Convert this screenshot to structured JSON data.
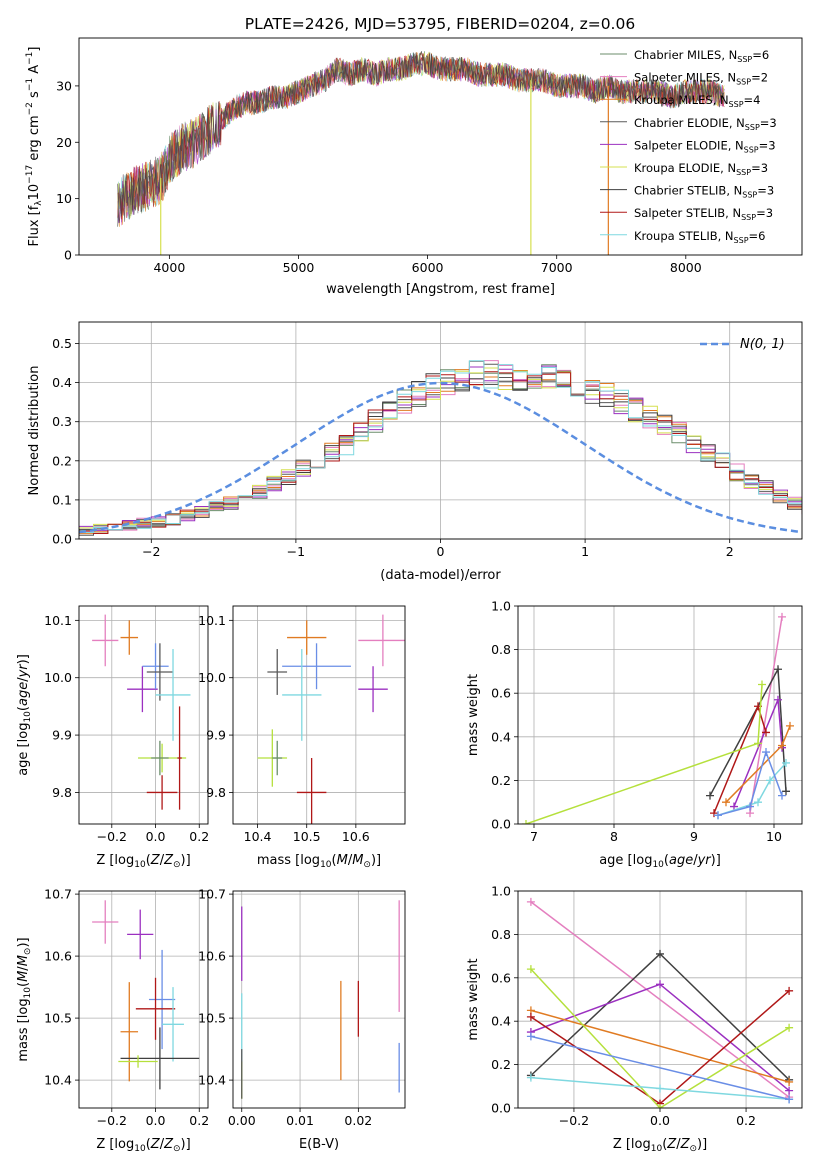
{
  "title": "PLATE=2426, MJD=53795, FIBERID=0204, z=0.06",
  "colors": {
    "chabrier_miles": "#6b8e6b",
    "salpeter_miles": "#e47fbf",
    "kroupa_miles": "#e07b22",
    "chabrier_elodie": "#5a5a5a",
    "salpeter_elodie": "#9b30c0",
    "kroupa_elodie": "#d6e050",
    "chabrier_stelib": "#404040",
    "salpeter_stelib": "#b01818",
    "kroupa_stelib": "#7fd8e0",
    "gauss": "#5b8ee0",
    "extra_green": "#b5e03c",
    "extra_blue": "#6a8ee6"
  },
  "chart_data": [
    {
      "type": "line",
      "name": "spectrum",
      "xlabel": "wavelength [Angstrom, rest frame]",
      "ylabel": "Flux [f_λ10^-17 erg cm^-2 s^-1 A^-1]",
      "xlim": [
        3300,
        8900
      ],
      "ylim": [
        0,
        38.5
      ],
      "xticks": [
        4000,
        5000,
        6000,
        7000,
        8000
      ],
      "yticks": [
        0,
        10,
        20,
        30
      ],
      "legend_position": "upper-right",
      "legend": [
        {
          "label": "Chabrier MILES, N",
          "sub": "SSP",
          "suffix": "=6",
          "color_key": "chabrier_miles"
        },
        {
          "label": "Salpeter MILES, N",
          "sub": "SSP",
          "suffix": "=2",
          "color_key": "salpeter_miles"
        },
        {
          "label": "Kroupa MILES, N",
          "sub": "SSP",
          "suffix": "=4",
          "color_key": "kroupa_miles"
        },
        {
          "label": "Chabrier ELODIE, N",
          "sub": "SSP",
          "suffix": "=3",
          "color_key": "chabrier_elodie"
        },
        {
          "label": "Salpeter ELODIE, N",
          "sub": "SSP",
          "suffix": "=3",
          "color_key": "salpeter_elodie"
        },
        {
          "label": "Kroupa ELODIE, N",
          "sub": "SSP",
          "suffix": "=3",
          "color_key": "kroupa_elodie"
        },
        {
          "label": "Chabrier STELIB, N",
          "sub": "SSP",
          "suffix": "=3",
          "color_key": "chabrier_stelib"
        },
        {
          "label": "Salpeter STELIB, N",
          "sub": "SSP",
          "suffix": "=3",
          "color_key": "salpeter_stelib"
        },
        {
          "label": "Kroupa STELIB, N",
          "sub": "SSP",
          "suffix": "=6",
          "color_key": "kroupa_stelib"
        }
      ],
      "envelope": {
        "x": [
          3600,
          3700,
          3800,
          3900,
          3950,
          4000,
          4100,
          4200,
          4300,
          4400,
          4500,
          4600,
          4700,
          4800,
          4900,
          5000,
          5100,
          5200,
          5300,
          5400,
          5500,
          5600,
          5700,
          5800,
          5900,
          6000,
          6100,
          6200,
          6300,
          6400,
          6500,
          6600,
          6700,
          6800,
          6900,
          7000,
          7100,
          7200,
          7300,
          7400,
          7500,
          7600,
          7700,
          7800,
          7900,
          8000,
          8100,
          8200,
          8300
        ],
        "y": [
          9,
          11,
          12,
          13,
          14,
          17,
          19,
          20,
          22,
          24,
          26,
          27,
          27,
          28,
          28,
          29,
          30,
          31,
          33,
          32,
          33,
          32,
          33,
          33,
          34,
          34,
          33,
          33,
          33,
          32,
          32,
          32,
          31,
          31,
          31,
          30,
          30,
          30,
          29,
          30,
          29,
          29,
          29,
          29,
          28,
          29,
          29,
          29,
          28
        ]
      },
      "dips": [
        {
          "x": 3933,
          "y": 0,
          "color_key": "kroupa_elodie"
        },
        {
          "x": 6800,
          "y": 0,
          "color_key": "kroupa_elodie"
        },
        {
          "x": 7400,
          "y": 0,
          "color_key": "kroupa_miles"
        }
      ]
    },
    {
      "type": "bar",
      "name": "residual-histogram",
      "xlabel": "(data-model)/error",
      "ylabel": "Normed distribution",
      "xlim": [
        -2.5,
        2.5
      ],
      "ylim": [
        0,
        0.555
      ],
      "xticks": [
        -2,
        -1,
        0,
        1,
        2
      ],
      "yticks": [
        0.0,
        0.1,
        0.2,
        0.3,
        0.4,
        0.5
      ],
      "legend_position": "upper-right",
      "legend_label": "N(0, 1)",
      "bin_width": 0.1,
      "bin_start": -2.5,
      "base": [
        0.02,
        0.025,
        0.03,
        0.035,
        0.04,
        0.045,
        0.05,
        0.06,
        0.07,
        0.08,
        0.09,
        0.1,
        0.12,
        0.14,
        0.16,
        0.18,
        0.2,
        0.22,
        0.24,
        0.27,
        0.3,
        0.32,
        0.35,
        0.37,
        0.39,
        0.4,
        0.41,
        0.43,
        0.42,
        0.41,
        0.4,
        0.41,
        0.41,
        0.4,
        0.39,
        0.38,
        0.37,
        0.35,
        0.33,
        0.31,
        0.29,
        0.27,
        0.24,
        0.22,
        0.2,
        0.17,
        0.15,
        0.13,
        0.11,
        0.09,
        0.08,
        0.07,
        0.06,
        0.05,
        0.045,
        0.04,
        0.035,
        0.03,
        0.025,
        0.02
      ],
      "series": [
        {
          "color_key": "chabrier_miles",
          "offsets_seed": 1
        },
        {
          "color_key": "salpeter_miles",
          "offsets_seed": 2
        },
        {
          "color_key": "kroupa_miles",
          "offsets_seed": 3
        },
        {
          "color_key": "chabrier_elodie",
          "offsets_seed": 4
        },
        {
          "color_key": "salpeter_elodie",
          "offsets_seed": 5
        },
        {
          "color_key": "kroupa_elodie",
          "offsets_seed": 6
        },
        {
          "color_key": "chabrier_stelib",
          "offsets_seed": 7
        },
        {
          "color_key": "salpeter_stelib",
          "offsets_seed": 8
        },
        {
          "color_key": "kroupa_stelib",
          "offsets_seed": 9
        }
      ]
    },
    {
      "type": "scatter",
      "name": "age-vs-Z",
      "xlabel": "Z [log10(Z/Z_sun)]",
      "ylabel": "age [log10(age/yr)]",
      "xlim": [
        -0.35,
        0.24
      ],
      "ylim": [
        9.745,
        10.125
      ],
      "xticks": [
        -0.2,
        0.0,
        0.2
      ],
      "yticks": [
        9.8,
        9.9,
        10.0,
        10.1
      ],
      "errorbars": [
        {
          "x": -0.23,
          "y": 10.065,
          "xerr": 0.06,
          "yerr": 0.045,
          "color_key": "salpeter_miles"
        },
        {
          "x": -0.12,
          "y": 10.07,
          "xerr": 0.04,
          "yerr": 0.03,
          "color_key": "kroupa_miles"
        },
        {
          "x": -0.06,
          "y": 9.98,
          "xerr": 0.07,
          "yerr": 0.04,
          "color_key": "salpeter_elodie"
        },
        {
          "x": 0.0,
          "y": 10.02,
          "xerr": 0.06,
          "yerr": 0.04,
          "color_key": "extra_blue"
        },
        {
          "x": 0.02,
          "y": 10.01,
          "xerr": 0.06,
          "yerr": 0.05,
          "color_key": "chabrier_elodie"
        },
        {
          "x": 0.08,
          "y": 9.97,
          "xerr": 0.08,
          "yerr": 0.08,
          "color_key": "kroupa_stelib"
        },
        {
          "x": 0.03,
          "y": 9.86,
          "xerr": 0.11,
          "yerr": 0.025,
          "color_key": "extra_green"
        },
        {
          "x": 0.02,
          "y": 9.86,
          "xerr": 0.04,
          "yerr": 0.03,
          "color_key": "chabrier_miles"
        },
        {
          "x": 0.03,
          "y": 9.8,
          "xerr": 0.07,
          "yerr": 0.03,
          "color_key": "salpeter_stelib"
        },
        {
          "x": 0.11,
          "y": 9.86,
          "xerr": 0.01,
          "yerr": 0.09,
          "color_key": "salpeter_stelib"
        }
      ]
    },
    {
      "type": "scatter",
      "name": "age-vs-mass",
      "xlabel": "mass [log10(M/M_sun)]",
      "ylabel": "",
      "xlim": [
        10.35,
        10.7
      ],
      "ylim": [
        9.745,
        10.125
      ],
      "xticks": [
        10.4,
        10.5,
        10.6
      ],
      "yticks": [
        9.8,
        9.9,
        10.0,
        10.1
      ],
      "errorbars": [
        {
          "x": 10.5,
          "y": 10.07,
          "xerr": 0.04,
          "yerr": 0.03,
          "color_key": "kroupa_miles"
        },
        {
          "x": 10.655,
          "y": 10.065,
          "xerr": 0.05,
          "yerr": 0.045,
          "color_key": "salpeter_miles"
        },
        {
          "x": 10.52,
          "y": 10.02,
          "xerr": 0.07,
          "yerr": 0.04,
          "color_key": "extra_blue"
        },
        {
          "x": 10.44,
          "y": 10.01,
          "xerr": 0.02,
          "yerr": 0.04,
          "color_key": "chabrier_elodie"
        },
        {
          "x": 10.635,
          "y": 9.98,
          "xerr": 0.03,
          "yerr": 0.04,
          "color_key": "salpeter_elodie"
        },
        {
          "x": 10.49,
          "y": 9.97,
          "xerr": 0.04,
          "yerr": 0.08,
          "color_key": "kroupa_stelib"
        },
        {
          "x": 10.43,
          "y": 9.86,
          "xerr": 0.03,
          "yerr": 0.05,
          "color_key": "extra_green"
        },
        {
          "x": 10.44,
          "y": 9.86,
          "xerr": 0.01,
          "yerr": 0.03,
          "color_key": "chabrier_miles"
        },
        {
          "x": 10.51,
          "y": 9.8,
          "xerr": 0.03,
          "yerr": 0.06,
          "color_key": "salpeter_stelib"
        }
      ]
    },
    {
      "type": "line",
      "name": "mass-weight-vs-age",
      "xlabel": "age [log10(age/yr)]",
      "ylabel": "mass weight",
      "xlim": [
        6.8,
        10.35
      ],
      "ylim": [
        0,
        1.0
      ],
      "xticks": [
        7,
        8,
        9,
        10
      ],
      "yticks": [
        0.0,
        0.2,
        0.4,
        0.6,
        0.8,
        1.0
      ],
      "lines": [
        {
          "color_key": "salpeter_miles",
          "x": [
            9.7,
            10.1
          ],
          "y": [
            0.05,
            0.95
          ]
        },
        {
          "color_key": "chabrier_stelib",
          "x": [
            9.2,
            10.05,
            10.15
          ],
          "y": [
            0.13,
            0.71,
            0.15
          ]
        },
        {
          "color_key": "salpeter_elodie",
          "x": [
            9.5,
            10.05,
            10.1
          ],
          "y": [
            0.08,
            0.57,
            0.35
          ]
        },
        {
          "color_key": "kroupa_miles",
          "x": [
            9.4,
            10.1,
            10.2
          ],
          "y": [
            0.1,
            0.36,
            0.45
          ]
        },
        {
          "color_key": "salpeter_stelib",
          "x": [
            9.25,
            9.8,
            9.9
          ],
          "y": [
            0.05,
            0.54,
            0.42
          ]
        },
        {
          "color_key": "extra_green",
          "x": [
            6.9,
            9.8,
            9.85
          ],
          "y": [
            0.0,
            0.37,
            0.64
          ]
        },
        {
          "color_key": "kroupa_stelib",
          "x": [
            9.3,
            9.8,
            9.95,
            10.15
          ],
          "y": [
            0.04,
            0.1,
            0.2,
            0.28
          ]
        },
        {
          "color_key": "extra_blue",
          "x": [
            9.3,
            9.7,
            9.9,
            10.1
          ],
          "y": [
            0.04,
            0.08,
            0.33,
            0.13
          ]
        }
      ]
    },
    {
      "type": "scatter",
      "name": "mass-vs-Z",
      "xlabel": "Z [log10(Z/Z_sun)]",
      "ylabel": "mass [log10(M/M_sun)]",
      "xlim": [
        -0.35,
        0.24
      ],
      "ylim": [
        10.355,
        10.705
      ],
      "xticks": [
        -0.2,
        0.0,
        0.2
      ],
      "yticks": [
        10.4,
        10.5,
        10.6,
        10.7
      ],
      "errorbars": [
        {
          "x": -0.23,
          "y": 10.655,
          "xerr": 0.06,
          "yerr": 0.035,
          "color_key": "salpeter_miles"
        },
        {
          "x": -0.07,
          "y": 10.635,
          "xerr": 0.06,
          "yerr": 0.04,
          "color_key": "salpeter_elodie"
        },
        {
          "x": 0.03,
          "y": 10.53,
          "xerr": 0.06,
          "yerr": 0.08,
          "color_key": "extra_blue"
        },
        {
          "x": 0.0,
          "y": 10.515,
          "xerr": 0.09,
          "yerr": 0.05,
          "color_key": "salpeter_stelib"
        },
        {
          "x": 0.08,
          "y": 10.49,
          "xerr": 0.05,
          "yerr": 0.06,
          "color_key": "kroupa_stelib"
        },
        {
          "x": -0.12,
          "y": 10.478,
          "xerr": 0.04,
          "yerr": 0.08,
          "color_key": "kroupa_miles"
        },
        {
          "x": 0.02,
          "y": 10.435,
          "xerr": 0.18,
          "yerr": 0.05,
          "color_key": "chabrier_stelib"
        },
        {
          "x": -0.08,
          "y": 10.43,
          "xerr": 0.09,
          "yerr": 0.01,
          "color_key": "extra_green"
        }
      ]
    },
    {
      "type": "scatter",
      "name": "mass-vs-ebv",
      "xlabel": "E(B-V)",
      "ylabel": "",
      "xlim": [
        -0.0015,
        0.028
      ],
      "ylim": [
        10.355,
        10.705
      ],
      "xticks": [
        0.0,
        0.01,
        0.02
      ],
      "yticks": [
        10.4,
        10.5,
        10.6,
        10.7
      ],
      "errorbars": [
        {
          "x": 0.0,
          "y": 10.62,
          "xerr": 0,
          "yerr": 0.06,
          "color_key": "salpeter_elodie"
        },
        {
          "x": 0.0,
          "y": 10.47,
          "xerr": 0,
          "yerr": 0.07,
          "color_key": "kroupa_stelib"
        },
        {
          "x": 0.0,
          "y": 10.4,
          "xerr": 0,
          "yerr": 0.03,
          "color_key": "extra_green"
        },
        {
          "x": 0.0,
          "y": 10.41,
          "xerr": 0,
          "yerr": 0.04,
          "color_key": "chabrier_elodie"
        },
        {
          "x": 0.017,
          "y": 10.48,
          "xerr": 0,
          "yerr": 0.08,
          "color_key": "kroupa_miles"
        },
        {
          "x": 0.02,
          "y": 10.515,
          "xerr": 0,
          "yerr": 0.045,
          "color_key": "salpeter_stelib"
        },
        {
          "x": 0.027,
          "y": 10.6,
          "xerr": 0,
          "yerr": 0.09,
          "color_key": "salpeter_miles"
        },
        {
          "x": 0.027,
          "y": 10.42,
          "xerr": 0,
          "yerr": 0.04,
          "color_key": "extra_blue"
        }
      ]
    },
    {
      "type": "line",
      "name": "mass-weight-vs-Z",
      "xlabel": "Z [log10(Z/Z_sun)]",
      "ylabel": "mass weight",
      "xlim": [
        -0.33,
        0.33
      ],
      "ylim": [
        0,
        1.0
      ],
      "xticks": [
        -0.2,
        0.0,
        0.2
      ],
      "yticks": [
        0.0,
        0.2,
        0.4,
        0.6,
        0.8,
        1.0
      ],
      "lines": [
        {
          "color_key": "salpeter_miles",
          "x": [
            -0.3,
            0.3
          ],
          "y": [
            0.95,
            0.05
          ]
        },
        {
          "color_key": "chabrier_stelib",
          "x": [
            -0.3,
            0.0,
            0.3
          ],
          "y": [
            0.15,
            0.71,
            0.13
          ]
        },
        {
          "color_key": "salpeter_elodie",
          "x": [
            -0.3,
            0.0,
            0.3
          ],
          "y": [
            0.35,
            0.57,
            0.08
          ]
        },
        {
          "color_key": "kroupa_miles",
          "x": [
            -0.3,
            0.3
          ],
          "y": [
            0.45,
            0.12
          ]
        },
        {
          "color_key": "salpeter_stelib",
          "x": [
            -0.3,
            0.0,
            0.3
          ],
          "y": [
            0.42,
            0.02,
            0.54
          ]
        },
        {
          "color_key": "extra_green",
          "x": [
            -0.3,
            0.0,
            0.3
          ],
          "y": [
            0.64,
            0.0,
            0.37
          ]
        },
        {
          "color_key": "kroupa_stelib",
          "x": [
            -0.3,
            0.0,
            0.3
          ],
          "y": [
            0.14,
            0.09,
            0.04
          ]
        },
        {
          "color_key": "extra_blue",
          "x": [
            -0.3,
            0.3
          ],
          "y": [
            0.33,
            0.04
          ]
        }
      ]
    }
  ]
}
